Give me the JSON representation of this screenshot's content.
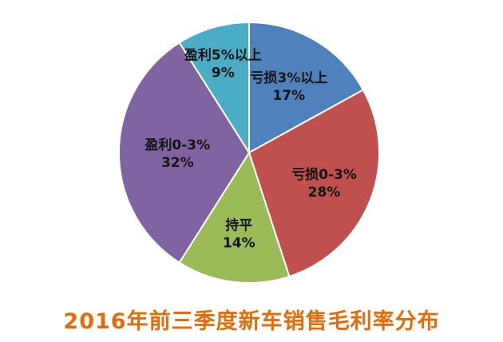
{
  "chart_data": {
    "type": "pie",
    "title": "2016年前三季度新车销售毛利率分布",
    "slices": [
      {
        "name": "亏损3%以上",
        "value": 17,
        "label": "17%",
        "color": "#4f81bd"
      },
      {
        "name": "亏损0-3%",
        "value": 28,
        "label": "28%",
        "color": "#c0504d"
      },
      {
        "name": "持平",
        "value": 14,
        "label": "14%",
        "color": "#9bbb59"
      },
      {
        "name": "盈利0-3%",
        "value": 32,
        "label": "32%",
        "color": "#8064a2"
      },
      {
        "name": "盈利5%以上",
        "value": 9,
        "label": "9%",
        "color": "#4bacc6"
      }
    ]
  }
}
